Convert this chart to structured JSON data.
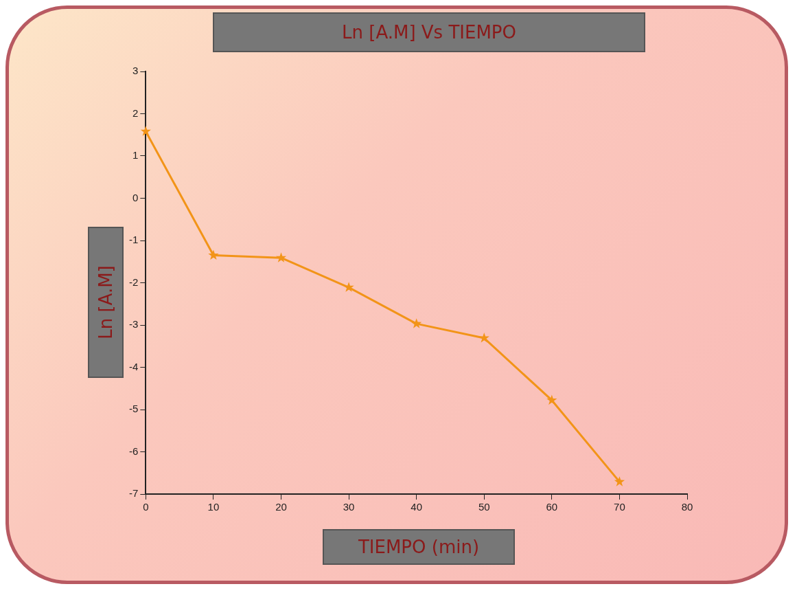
{
  "chart_data": {
    "type": "line",
    "title": "Ln [A.M] Vs TIEMPO",
    "xlabel": "TIEMPO (min)",
    "ylabel": "Ln [A.M]",
    "x": [
      0,
      10,
      20,
      30,
      40,
      50,
      60,
      70
    ],
    "series": [
      {
        "color": "#f29418",
        "values": [
          1.58,
          -1.35,
          -1.41,
          -2.11,
          -2.97,
          -3.31,
          -4.78,
          -6.71
        ]
      }
    ],
    "xlim": [
      0,
      80
    ],
    "xticks": [
      0,
      10,
      20,
      30,
      40,
      50,
      60,
      70,
      80
    ],
    "ylim": [
      -7,
      3
    ],
    "yticks": [
      -7,
      -6,
      -5,
      -4,
      -3,
      -2,
      -1,
      0,
      1,
      2,
      3
    ],
    "grid": false,
    "legend": false,
    "marker": "star",
    "line_style": "solid"
  }
}
